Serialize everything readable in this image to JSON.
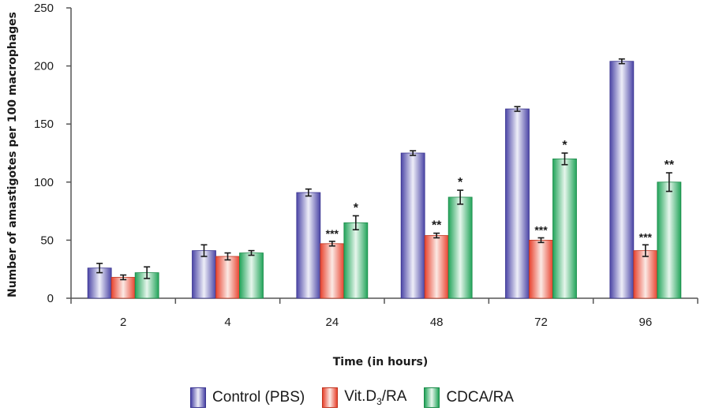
{
  "chart_data": {
    "type": "bar",
    "title": "",
    "xlabel": "Time (in hours)",
    "ylabel": "Number of amastigotes per 100 macrophages",
    "ylim": [
      0,
      250
    ],
    "yticks": [
      "0",
      "50",
      "100",
      "150",
      "200",
      "250"
    ],
    "categories": [
      "2",
      "4",
      "24",
      "48",
      "72",
      "96"
    ],
    "series": [
      {
        "name": "Control (PBS)",
        "color": "#4b45a6",
        "values": [
          26,
          41,
          91,
          125,
          163,
          204
        ],
        "errors": [
          4,
          5,
          3,
          2,
          2,
          2
        ],
        "significance": [
          "",
          "",
          "",
          "",
          "",
          ""
        ]
      },
      {
        "name": "Vit.D3/RA",
        "color": "#e8432f",
        "values": [
          18,
          36,
          47,
          54,
          50,
          41
        ],
        "errors": [
          2,
          3,
          2,
          2,
          2,
          5
        ],
        "significance": [
          "",
          "",
          "***",
          "**",
          "***",
          "***"
        ]
      },
      {
        "name": "CDCA/RA",
        "color": "#22a45a",
        "values": [
          22,
          39,
          65,
          87,
          120,
          100
        ],
        "errors": [
          5,
          2,
          6,
          6,
          5,
          8
        ],
        "significance": [
          "",
          "",
          "*",
          "*",
          "*",
          "**"
        ]
      }
    ]
  },
  "legend": {
    "control_label": "Control (PBS)",
    "vitd_prefix": "Vit.D",
    "vitd_sub": "3",
    "vitd_suffix": "/RA",
    "cdca_label": "CDCA/RA"
  }
}
